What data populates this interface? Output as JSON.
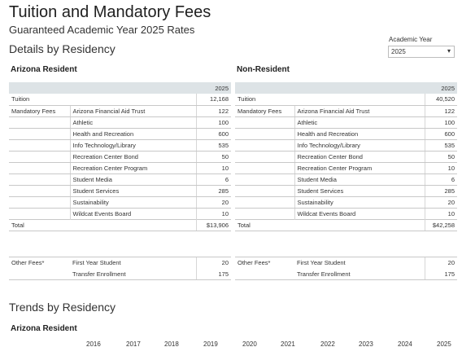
{
  "header": {
    "title": "Tuition and Mandatory Fees",
    "subtitle": "Guaranteed Academic Year 2025 Rates",
    "details_heading": "Details by Residency",
    "trends_heading": "Trends by Residency"
  },
  "filter": {
    "label": "Academic Year",
    "value": "2025"
  },
  "groups": [
    {
      "title": "Arizona Resident",
      "year_header": "2025",
      "tuition_label": "Tuition",
      "tuition_value": "12,168",
      "mandatory_label": "Mandatory Fees",
      "fees": [
        {
          "name": "Arizona Financial Aid Trust",
          "value": "122"
        },
        {
          "name": "Athletic",
          "value": "100"
        },
        {
          "name": "Health and Recreation",
          "value": "600"
        },
        {
          "name": "Info Technology/Library",
          "value": "535"
        },
        {
          "name": "Recreation Center Bond",
          "value": "50"
        },
        {
          "name": "Recreation Center Program",
          "value": "10"
        },
        {
          "name": "Student Media",
          "value": "6"
        },
        {
          "name": "Student Services",
          "value": "285"
        },
        {
          "name": "Sustainability",
          "value": "20"
        },
        {
          "name": "Wildcat Events Board",
          "value": "10"
        }
      ],
      "total_label": "Total",
      "total_value": "$13,906",
      "other_label": "Other Fees*",
      "other_fees": [
        {
          "name": "First Year Student",
          "value": "20"
        },
        {
          "name": "Transfer Enrollment",
          "value": "175"
        }
      ]
    },
    {
      "title": "Non-Resident",
      "year_header": "2025",
      "tuition_label": "Tuition",
      "tuition_value": "40,520",
      "mandatory_label": "Mandatory Fees",
      "fees": [
        {
          "name": "Arizona Financial Aid Trust",
          "value": "122"
        },
        {
          "name": "Athletic",
          "value": "100"
        },
        {
          "name": "Health and Recreation",
          "value": "600"
        },
        {
          "name": "Info Technology/Library",
          "value": "535"
        },
        {
          "name": "Recreation Center Bond",
          "value": "50"
        },
        {
          "name": "Recreation Center Program",
          "value": "10"
        },
        {
          "name": "Student Media",
          "value": "6"
        },
        {
          "name": "Student Services",
          "value": "285"
        },
        {
          "name": "Sustainability",
          "value": "20"
        },
        {
          "name": "Wildcat Events Board",
          "value": "10"
        }
      ],
      "total_label": "Total",
      "total_value": "$42,258",
      "other_label": "Other Fees*",
      "other_fees": [
        {
          "name": "First Year Student",
          "value": "20"
        },
        {
          "name": "Transfer Enrollment",
          "value": "175"
        }
      ]
    }
  ],
  "trends": {
    "group_title": "Arizona Resident",
    "years": [
      "2016",
      "2017",
      "2018",
      "2019",
      "2020",
      "2021",
      "2022",
      "2023",
      "2024",
      "2025"
    ]
  }
}
